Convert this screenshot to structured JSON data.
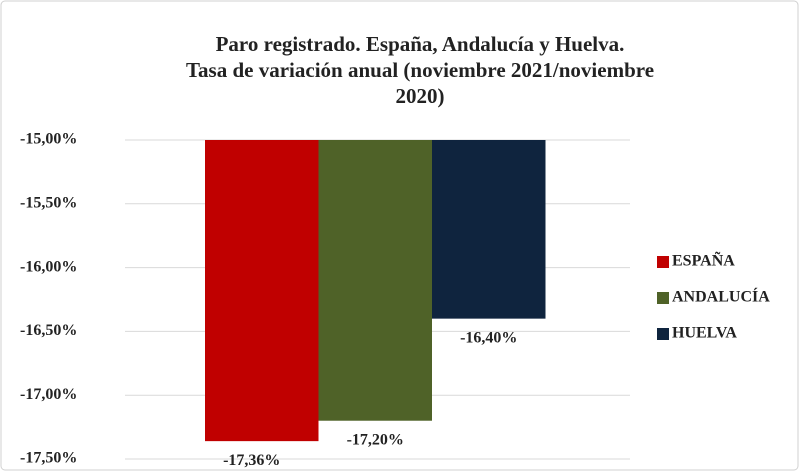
{
  "chart_data": {
    "type": "bar",
    "title": [
      "Paro registrado. España, Andalucía y Huelva.",
      "Tasa de variación anual (noviembre 2021/noviembre",
      "2020)"
    ],
    "categories": [
      null
    ],
    "series": [
      {
        "name": "ESPAÑA",
        "color": "#c00000",
        "values": [
          -17.36
        ],
        "value_labels": [
          "-17,36%"
        ]
      },
      {
        "name": "ANDALUCÍA",
        "color": "#4f6228",
        "values": [
          -17.2
        ],
        "value_labels": [
          "-17,20%"
        ]
      },
      {
        "name": "HUELVA",
        "color": "#0f243e",
        "values": [
          -16.4
        ],
        "value_labels": [
          "-16,40%"
        ]
      }
    ],
    "ylim": [
      -17.5,
      -15
    ],
    "yticks": [
      {
        "value": -15,
        "label": "-15,00%"
      },
      {
        "value": -15.5,
        "label": "-15,50%"
      },
      {
        "value": -16,
        "label": "-16,00%"
      },
      {
        "value": -16.5,
        "label": "-16,50%"
      },
      {
        "value": -17,
        "label": "-17,00%"
      },
      {
        "value": -17.5,
        "label": "-17,50%"
      }
    ],
    "grid": true,
    "legend": "right"
  }
}
